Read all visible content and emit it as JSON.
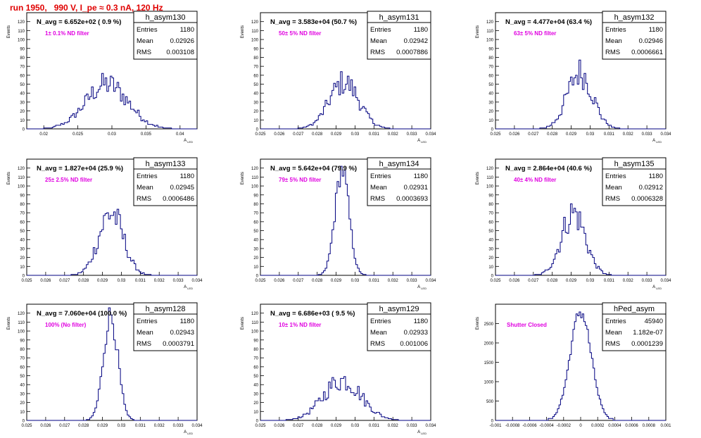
{
  "page": {
    "title": "run 1950,   990 V, I_pe ≈ 0.3 nA, 120 Hz"
  },
  "colors": {
    "title": "#e00000",
    "histogram": "#000080",
    "annotation": "#e000e0",
    "axis": "#000000"
  },
  "chart_data": [
    {
      "type": "bar",
      "name": "h_asym130",
      "header": "N_avg = 6.652e+02 ( 0.9 %)",
      "annotation": "1± 0.1% ND filter",
      "stats": [
        [
          "Entries",
          "1180"
        ],
        [
          "Mean",
          "0.02926"
        ],
        [
          "RMS",
          "0.003108"
        ]
      ],
      "ylabel": "Events",
      "xlabel": "A_{LED}",
      "xlim": [
        0.0175,
        0.0425
      ],
      "ylim": [
        0,
        130
      ],
      "yticks": [
        "0",
        "10",
        "20",
        "30",
        "40",
        "50",
        "60",
        "70",
        "80",
        "90",
        "100",
        "110",
        "120"
      ],
      "xticks": [
        "0.02",
        "0.025",
        "0.03",
        "0.035",
        "0.04"
      ],
      "mean": 0.02926,
      "rms": 0.003108,
      "peak": 50
    },
    {
      "type": "bar",
      "name": "h_asym131",
      "header": "N_avg = 3.583e+04 (50.7 %)",
      "annotation": "50± 5% ND filter",
      "stats": [
        [
          "Entries",
          "1180"
        ],
        [
          "Mean",
          "0.02942"
        ],
        [
          "RMS",
          "0.0007886"
        ]
      ],
      "ylabel": "Events",
      "xlabel": "A_{LED}",
      "xlim": [
        0.025,
        0.034
      ],
      "ylim": [
        0,
        130
      ],
      "yticks": [
        "0",
        "10",
        "20",
        "30",
        "40",
        "50",
        "60",
        "70",
        "80",
        "90",
        "100",
        "110",
        "120"
      ],
      "xticks": [
        "0.025",
        "0.026",
        "0.027",
        "0.028",
        "0.029",
        "0.03",
        "0.031",
        "0.032",
        "0.033",
        "0.034"
      ],
      "mean": 0.02942,
      "rms": 0.0007886,
      "peak": 52
    },
    {
      "type": "bar",
      "name": "h_asym132",
      "header": "N_avg = 4.477e+04 (63.4 %)",
      "annotation": "63± 5% ND filter",
      "stats": [
        [
          "Entries",
          "1180"
        ],
        [
          "Mean",
          "0.02946"
        ],
        [
          "RMS",
          "0.0006661"
        ]
      ],
      "ylabel": "Events",
      "xlabel": "A_{LED}",
      "xlim": [
        0.025,
        0.034
      ],
      "ylim": [
        0,
        130
      ],
      "yticks": [
        "0",
        "10",
        "20",
        "30",
        "40",
        "50",
        "60",
        "70",
        "80",
        "90",
        "100",
        "110",
        "120"
      ],
      "xticks": [
        "0.025",
        "0.026",
        "0.027",
        "0.028",
        "0.029",
        "0.03",
        "0.031",
        "0.032",
        "0.033",
        "0.034"
      ],
      "mean": 0.02946,
      "rms": 0.0006661,
      "peak": 63
    },
    {
      "type": "bar",
      "name": "h_asym133",
      "header": "N_avg = 1.827e+04 (25.9 %)",
      "annotation": "25± 2.5% ND filter",
      "stats": [
        [
          "Entries",
          "1180"
        ],
        [
          "Mean",
          "0.02945"
        ],
        [
          "RMS",
          "0.0006486"
        ]
      ],
      "ylabel": "Events",
      "xlabel": "A_{LED}",
      "xlim": [
        0.025,
        0.034
      ],
      "ylim": [
        0,
        130
      ],
      "yticks": [
        "0",
        "10",
        "20",
        "30",
        "40",
        "50",
        "60",
        "70",
        "80",
        "90",
        "100",
        "110",
        "120"
      ],
      "xticks": [
        "0.025",
        "0.026",
        "0.027",
        "0.028",
        "0.029",
        "0.03",
        "0.031",
        "0.032",
        "0.033",
        "0.034"
      ],
      "mean": 0.02945,
      "rms": 0.0006486,
      "peak": 70
    },
    {
      "type": "bar",
      "name": "h_asym134",
      "header": "N_avg = 5.642e+04 (79.9 %)",
      "annotation": "79± 5% ND filter",
      "stats": [
        [
          "Entries",
          "1180"
        ],
        [
          "Mean",
          "0.02931"
        ],
        [
          "RMS",
          "0.0003693"
        ]
      ],
      "ylabel": "Events",
      "xlabel": "A_{LED}",
      "xlim": [
        0.025,
        0.034
      ],
      "ylim": [
        0,
        130
      ],
      "yticks": [
        "0",
        "10",
        "20",
        "30",
        "40",
        "50",
        "60",
        "70",
        "80",
        "90",
        "100",
        "110",
        "120"
      ],
      "xticks": [
        "0.025",
        "0.026",
        "0.027",
        "0.028",
        "0.029",
        "0.03",
        "0.031",
        "0.032",
        "0.033",
        "0.034"
      ],
      "mean": 0.02931,
      "rms": 0.0003693,
      "peak": 118
    },
    {
      "type": "bar",
      "name": "h_asym135",
      "header": "N_avg = 2.864e+04 (40.6 %)",
      "annotation": "40± 4% ND filter",
      "stats": [
        [
          "Entries",
          "1180"
        ],
        [
          "Mean",
          "0.02912"
        ],
        [
          "RMS",
          "0.0006328"
        ]
      ],
      "ylabel": "Events",
      "xlabel": "A_{LED}",
      "xlim": [
        0.025,
        0.034
      ],
      "ylim": [
        0,
        130
      ],
      "yticks": [
        "0",
        "10",
        "20",
        "30",
        "40",
        "50",
        "60",
        "70",
        "80",
        "90",
        "100",
        "110",
        "120"
      ],
      "xticks": [
        "0.025",
        "0.026",
        "0.027",
        "0.028",
        "0.029",
        "0.03",
        "0.031",
        "0.032",
        "0.033",
        "0.034"
      ],
      "mean": 0.02912,
      "rms": 0.0006328,
      "peak": 70
    },
    {
      "type": "bar",
      "name": "h_asym128",
      "header": "N_avg = 7.060e+04 (100.0 %)",
      "annotation": "100% (No filter)",
      "stats": [
        [
          "Entries",
          "1180"
        ],
        [
          "Mean",
          "0.02943"
        ],
        [
          "RMS",
          "0.0003791"
        ]
      ],
      "ylabel": "Events",
      "xlabel": "A_{LED}",
      "xlim": [
        0.025,
        0.034
      ],
      "ylim": [
        0,
        130
      ],
      "yticks": [
        "0",
        "10",
        "20",
        "30",
        "40",
        "50",
        "60",
        "70",
        "80",
        "90",
        "100",
        "110",
        "120"
      ],
      "xticks": [
        "0.025",
        "0.026",
        "0.027",
        "0.028",
        "0.029",
        "0.03",
        "0.031",
        "0.032",
        "0.033",
        "0.034"
      ],
      "mean": 0.02943,
      "rms": 0.0003791,
      "peak": 118
    },
    {
      "type": "bar",
      "name": "h_asym129",
      "header": "N_avg = 6.686e+03 ( 9.5 %)",
      "annotation": "10± 1% ND filter",
      "stats": [
        [
          "Entries",
          "1180"
        ],
        [
          "Mean",
          "0.02933"
        ],
        [
          "RMS",
          "0.001006"
        ]
      ],
      "ylabel": "Events",
      "xlabel": "A_{LED}",
      "xlim": [
        0.025,
        0.034
      ],
      "ylim": [
        0,
        130
      ],
      "yticks": [
        "0",
        "10",
        "20",
        "30",
        "40",
        "50",
        "60",
        "70",
        "80",
        "90",
        "100",
        "110",
        "120"
      ],
      "xticks": [
        "0.025",
        "0.026",
        "0.027",
        "0.028",
        "0.029",
        "0.03",
        "0.031",
        "0.032",
        "0.033",
        "0.034"
      ],
      "mean": 0.02933,
      "rms": 0.001006,
      "peak": 45
    },
    {
      "type": "bar",
      "name": "hPed_asym",
      "header": "",
      "annotation": "Shutter Closed",
      "stats": [
        [
          "Entries",
          "45940"
        ],
        [
          "Mean",
          "1.182e-07"
        ],
        [
          "RMS",
          "0.0001239"
        ]
      ],
      "ylabel": "Events",
      "xlabel": "",
      "xlim": [
        -0.001,
        0.001
      ],
      "ylim": [
        0,
        3000
      ],
      "yticks": [
        "0",
        "500",
        "1000",
        "1500",
        "2000",
        "2500"
      ],
      "xticks": [
        "-0.001",
        "-0.0008",
        "-0.0006",
        "-0.0004",
        "-0.0002",
        "0",
        "0.0002",
        "0.0004",
        "0.0006",
        "0.0008",
        "0.001"
      ],
      "mean": 0.0,
      "rms": 0.0001239,
      "peak": 2800
    }
  ]
}
